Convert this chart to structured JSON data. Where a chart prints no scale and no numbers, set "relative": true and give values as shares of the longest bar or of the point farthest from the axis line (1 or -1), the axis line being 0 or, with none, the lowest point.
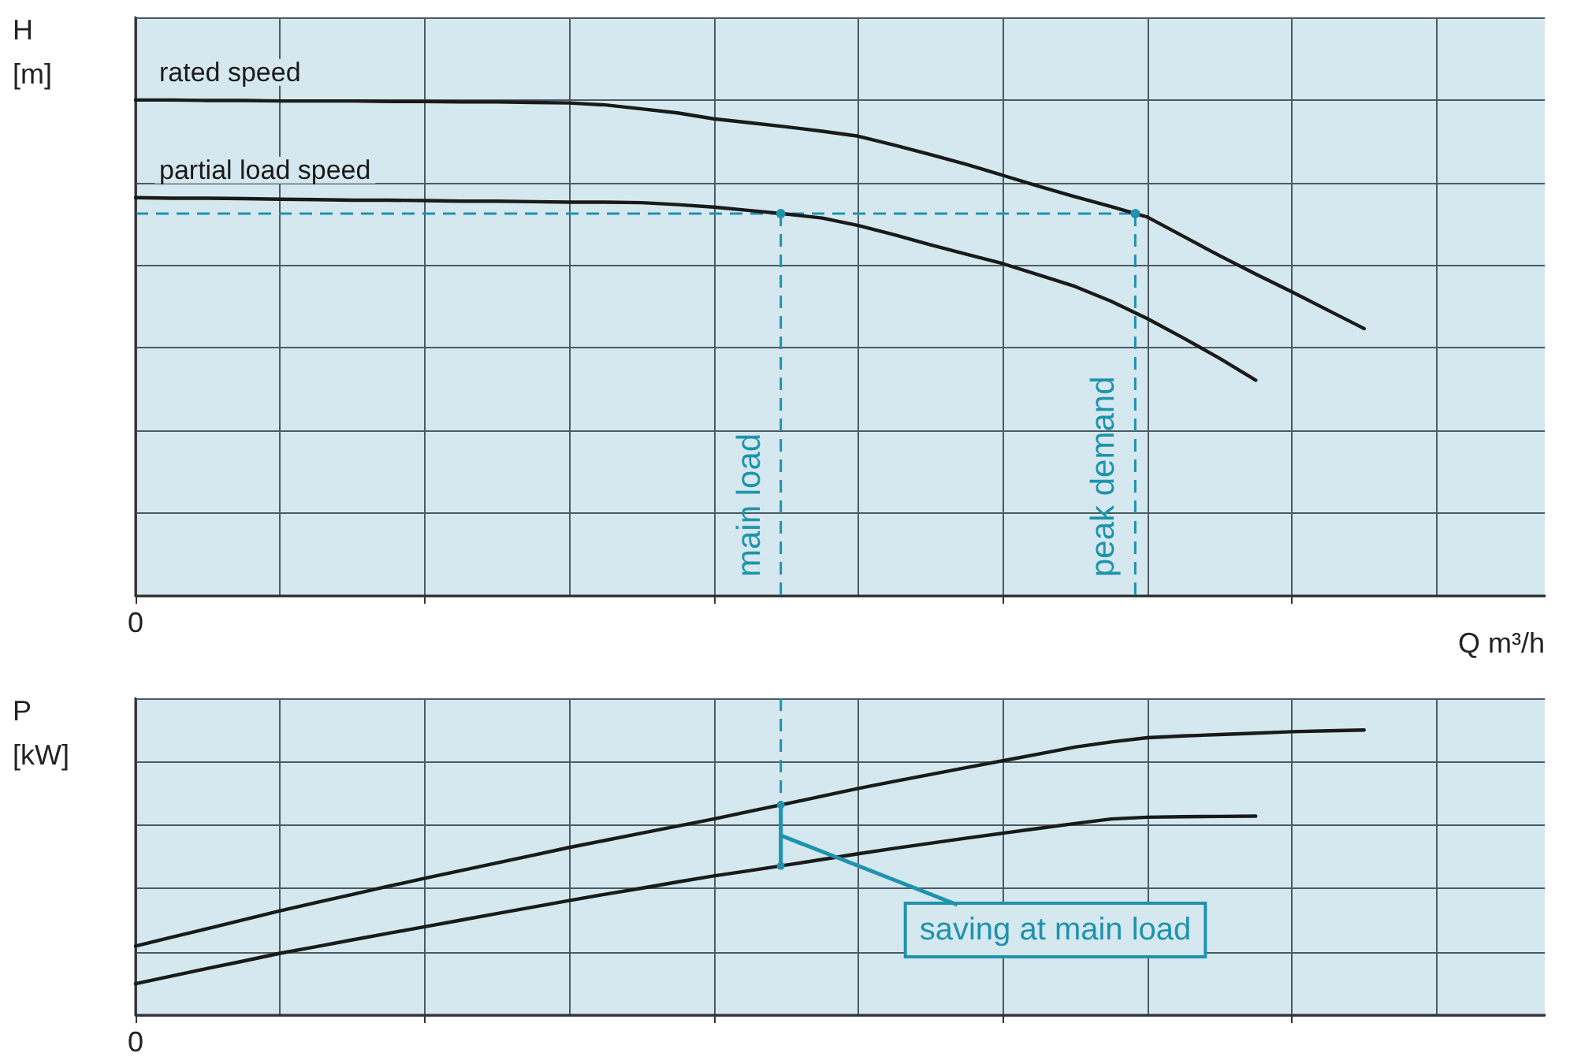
{
  "chart_data": [
    {
      "type": "line",
      "ylabel": "H [m]",
      "xlabel": "Q m³/h",
      "relative": true,
      "grid": true,
      "legend": false,
      "marker": "none",
      "categories": [
        null,
        null,
        null,
        null,
        null,
        null,
        null,
        null,
        null,
        null,
        null,
        null,
        null,
        null,
        null,
        null,
        null,
        null,
        null,
        null,
        null,
        null,
        null,
        null,
        null,
        null,
        null,
        null,
        null,
        null,
        null,
        null,
        null,
        null,
        null,
        null,
        null,
        null,
        null,
        null
      ],
      "series": [
        {
          "name": "rated speed",
          "color": "#1a1a1a",
          "values": [
            1,
            1,
            0.999,
            0.999,
            0.998,
            0.998,
            0.998,
            0.997,
            0.997,
            0.996,
            0.996,
            0.995,
            0.994,
            0.99,
            0.982,
            0.974,
            0.962,
            0.954,
            0.946,
            0.937,
            0.927,
            0.909,
            0.89,
            0.87,
            0.848,
            0.826,
            0.805,
            0.785,
            0.764,
            0.725,
            0.686,
            0.649,
            0.613,
            0.576,
            0.539,
            null,
            null,
            null,
            null,
            null
          ]
        },
        {
          "name": "partial load speed",
          "color": "#1a1a1a",
          "values": [
            0.803,
            0.802,
            0.802,
            0.801,
            0.8,
            0.799,
            0.798,
            0.798,
            0.797,
            0.796,
            0.796,
            0.795,
            0.794,
            0.794,
            0.793,
            0.789,
            0.784,
            0.777,
            0.77,
            0.762,
            0.747,
            0.728,
            0.708,
            0.689,
            0.67,
            0.647,
            0.624,
            0.594,
            0.559,
            0.52,
            0.479,
            0.435,
            null,
            null,
            null,
            null,
            null,
            null,
            null,
            null
          ]
        }
      ],
      "ref_lines": [
        {
          "axis": "y",
          "value": 0.771,
          "color": "#1f93ad",
          "line_style": "dashed"
        }
      ],
      "annotations": [
        "0",
        "main load",
        "peak demand"
      ]
    },
    {
      "type": "line",
      "ylabel": "P [kW]",
      "relative": true,
      "grid": true,
      "legend": false,
      "marker": "none",
      "categories": [
        null,
        null,
        null,
        null,
        null,
        null,
        null,
        null,
        null,
        null,
        null,
        null,
        null,
        null,
        null,
        null,
        null,
        null,
        null,
        null,
        null,
        null,
        null,
        null,
        null,
        null,
        null,
        null,
        null,
        null,
        null,
        null,
        null,
        null,
        null,
        null,
        null,
        null,
        null,
        null
      ],
      "series": [
        {
          "color": "#1a1a1a",
          "values": [
            0.242,
            0.273,
            0.304,
            0.335,
            0.366,
            0.395,
            0.423,
            0.452,
            0.48,
            0.507,
            0.534,
            0.561,
            0.588,
            0.613,
            0.638,
            0.663,
            0.688,
            0.715,
            0.741,
            0.768,
            0.795,
            0.82,
            0.844,
            0.868,
            0.892,
            0.916,
            0.94,
            0.958,
            0.973,
            0.979,
            0.984,
            0.989,
            0.994,
            0.997,
            1,
            null,
            null,
            null,
            null,
            null
          ]
        },
        {
          "color": "#1a1a1a",
          "values": [
            0.11,
            0.137,
            0.164,
            0.19,
            0.217,
            0.24,
            0.264,
            0.287,
            0.31,
            0.333,
            0.356,
            0.379,
            0.402,
            0.424,
            0.445,
            0.467,
            0.488,
            0.507,
            0.526,
            0.546,
            0.566,
            0.585,
            0.603,
            0.621,
            0.638,
            0.655,
            0.672,
            0.688,
            0.694,
            0.696,
            0.697,
            0.698,
            null,
            null,
            null,
            null,
            null,
            null,
            null,
            null
          ]
        }
      ],
      "annotations": [
        "0",
        "saving at main load"
      ]
    }
  ]
}
